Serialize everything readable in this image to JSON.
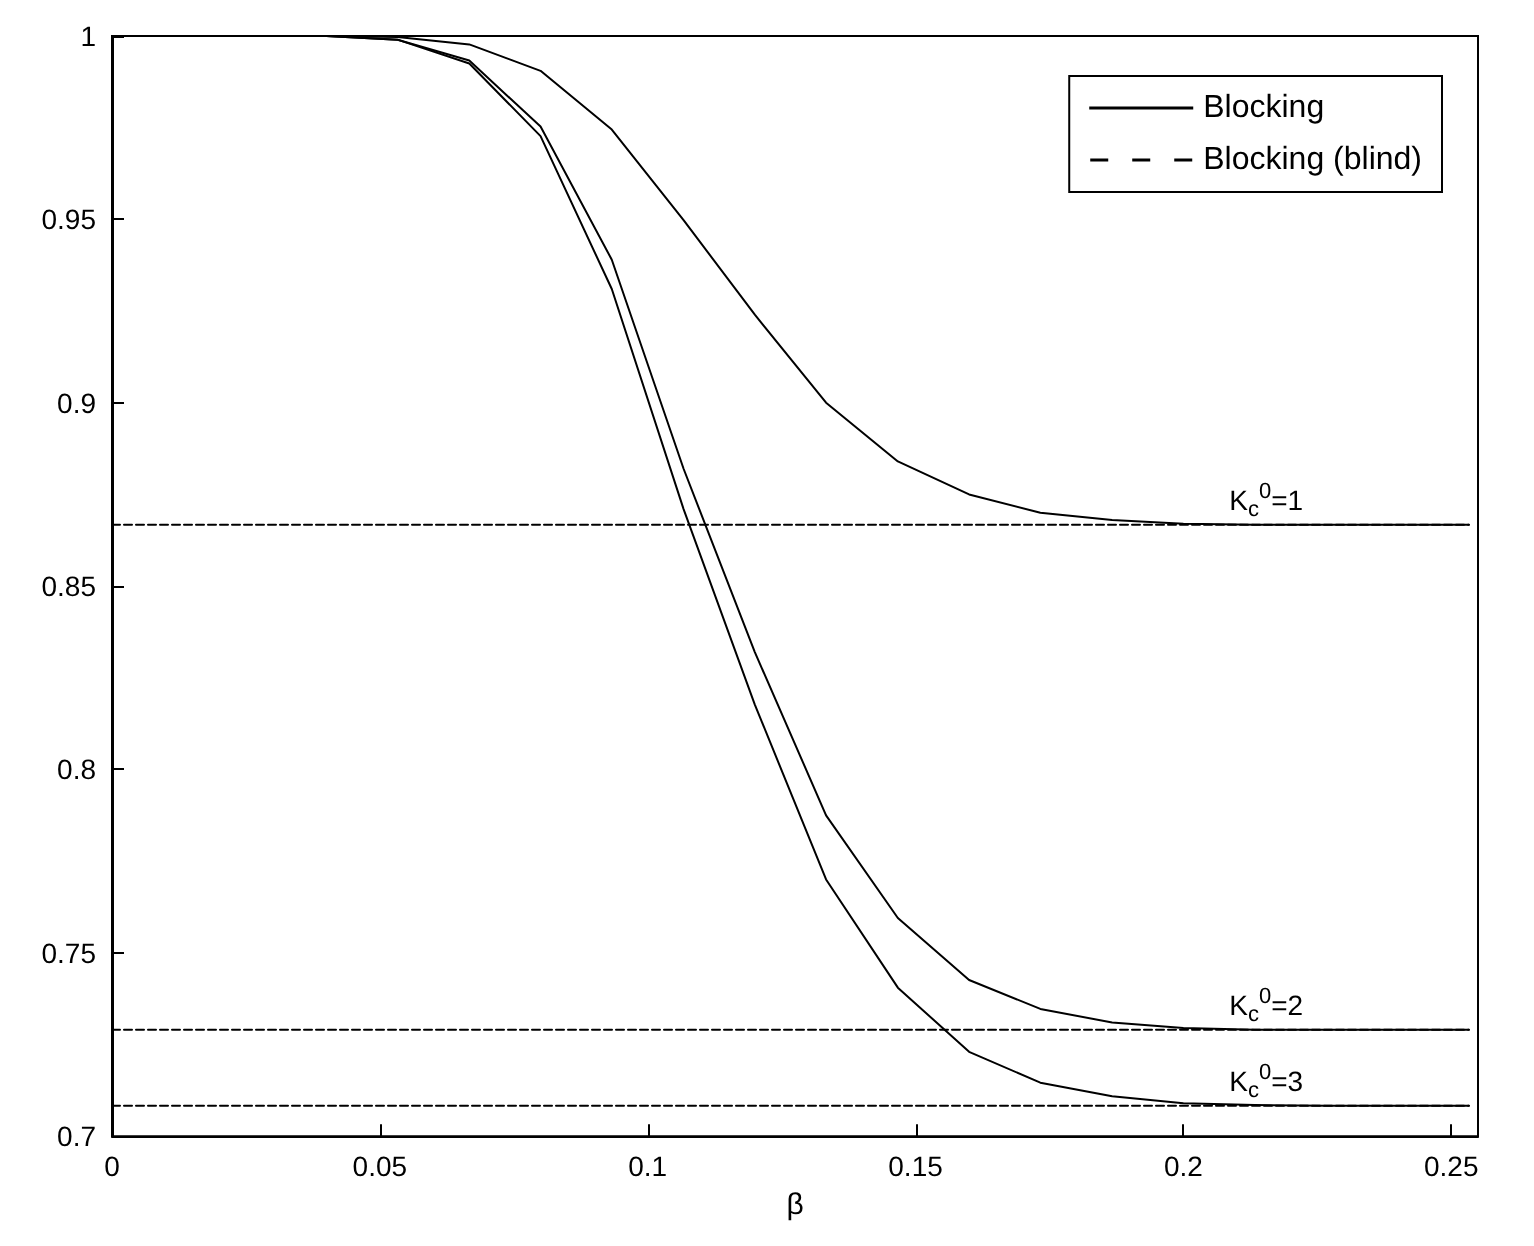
{
  "chart_data": {
    "type": "line",
    "xlabel": "β",
    "x": [
      0,
      0.0133,
      0.0267,
      0.04,
      0.0533,
      0.0667,
      0.08,
      0.0933,
      0.1067,
      0.12,
      0.1333,
      0.1467,
      0.16,
      0.1733,
      0.1867,
      0.2,
      0.2133,
      0.2267,
      0.24,
      0.2533
    ],
    "series": [
      {
        "name": "Blocking",
        "color": "#000000",
        "line_style": "solid",
        "values": [
          1,
          1,
          1,
          1,
          0.9997,
          0.9977,
          0.9905,
          0.9745,
          0.9498,
          0.924,
          0.9,
          0.884,
          0.875,
          0.87,
          0.868,
          0.867,
          0.8667,
          0.8667,
          0.8667,
          0.8667
        ]
      },
      {
        "color": "#000000",
        "line_style": "solid",
        "values": [
          1,
          1,
          1,
          1,
          0.999,
          0.9933,
          0.9753,
          0.939,
          0.882,
          0.832,
          0.7875,
          0.7595,
          0.7426,
          0.7347,
          0.731,
          0.7295,
          0.729,
          0.729,
          0.729,
          0.729
        ]
      },
      {
        "color": "#000000",
        "line_style": "solid",
        "values": [
          1,
          1,
          1,
          1,
          0.999,
          0.9925,
          0.9727,
          0.931,
          0.871,
          0.8177,
          0.77,
          0.7405,
          0.723,
          0.7146,
          0.7109,
          0.709,
          0.7085,
          0.7083,
          0.7083,
          0.7083
        ]
      },
      {
        "name": "Blocking (blind)",
        "color": "#000000",
        "line_style": "dashed",
        "values": [
          0.8667,
          0.8667,
          0.8667,
          0.8667,
          0.8667,
          0.8667,
          0.8667,
          0.8667,
          0.8667,
          0.8667,
          0.8667,
          0.8667,
          0.8667,
          0.8667,
          0.8667,
          0.8667,
          0.8667,
          0.8667,
          0.8667,
          0.8667
        ]
      },
      {
        "color": "#000000",
        "line_style": "dashed",
        "values": [
          0.729,
          0.729,
          0.729,
          0.729,
          0.729,
          0.729,
          0.729,
          0.729,
          0.729,
          0.729,
          0.729,
          0.729,
          0.729,
          0.729,
          0.729,
          0.729,
          0.729,
          0.729,
          0.729,
          0.729
        ]
      },
      {
        "color": "#000000",
        "line_style": "dashed",
        "values": [
          0.7083,
          0.7083,
          0.7083,
          0.7083,
          0.7083,
          0.7083,
          0.7083,
          0.7083,
          0.7083,
          0.7083,
          0.7083,
          0.7083,
          0.7083,
          0.7083,
          0.7083,
          0.7083,
          0.7083,
          0.7083,
          0.7083,
          0.7083
        ]
      }
    ],
    "annotations": [
      {
        "text": "K$_{c}$$^{0}$=1",
        "y": 0.8667
      },
      {
        "text": "K$_{c}$$^{0}$=2",
        "y": 0.729
      },
      {
        "text": "K$_{c}$$^{0}$=3",
        "y": 0.7083
      }
    ],
    "xlim": [
      0,
      0.255
    ],
    "xticks": [
      0,
      0.05,
      0.1,
      0.15,
      0.2,
      0.25
    ],
    "ylim": [
      0.7,
      1
    ],
    "yticks": [
      0.7,
      0.75,
      0.8,
      0.85,
      0.9,
      0.95,
      1
    ],
    "grid": false,
    "legend": "top right",
    "marker": "none"
  }
}
